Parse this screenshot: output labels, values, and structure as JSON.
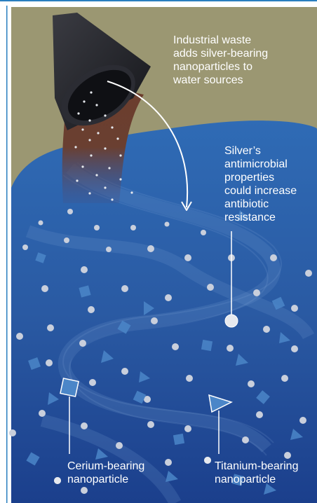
{
  "labels": {
    "industrial_waste": "Industrial waste\nadds silver-bearing\nnanoparticles to\nwater sources",
    "silver": "Silver’s\nantimicrobial\nproperties\ncould increase\nantibiotic\nresistance",
    "cerium": "Cerium-bearing\nnanoparticle",
    "titanium": "Titanium-bearing\nnanoparticle"
  },
  "colors": {
    "sky": "#9b9772",
    "water_dark": "#173b86",
    "water_mid": "#2e5fa6",
    "water_light": "#3f7fc4",
    "pipe": "#1e1f25",
    "waste": "#6a3f2e",
    "particle": "#e6e9ee",
    "cerium": "#4b86c8",
    "titanium": "#4b86c8",
    "frame_line": "#2a7fbf"
  },
  "icons": [
    "pipe-icon",
    "arrow-icon",
    "silver-particle-icon",
    "cerium-particle-icon",
    "titanium-particle-icon"
  ]
}
